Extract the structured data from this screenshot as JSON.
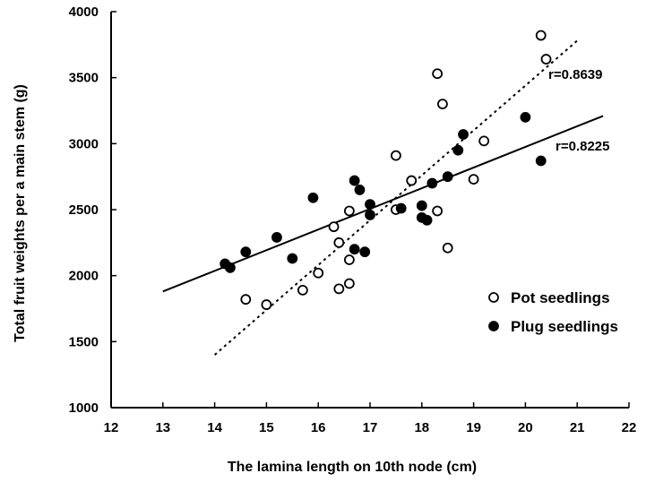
{
  "chart_data": {
    "type": "scatter",
    "title": "",
    "xlabel": "The lamina length on 10th node (cm)",
    "ylabel": "Total fruit weights per a main stem (g)",
    "xlim": [
      12,
      22
    ],
    "ylim": [
      1000,
      4000
    ],
    "x_ticks": [
      "12",
      "13",
      "14",
      "15",
      "16",
      "17",
      "18",
      "19",
      "20",
      "21",
      "22"
    ],
    "y_ticks": [
      "1000",
      "1500",
      "2000",
      "2500",
      "3000",
      "3500",
      "4000"
    ],
    "legend_position": "right",
    "grid": false,
    "series": [
      {
        "name": "Pot seedlings",
        "marker": "open-circle",
        "points": [
          [
            14.6,
            1820
          ],
          [
            15.0,
            1780
          ],
          [
            15.7,
            1890
          ],
          [
            16.0,
            2020
          ],
          [
            16.3,
            2370
          ],
          [
            16.4,
            2250
          ],
          [
            16.4,
            1900
          ],
          [
            16.6,
            2120
          ],
          [
            16.6,
            1940
          ],
          [
            16.6,
            2490
          ],
          [
            17.5,
            2910
          ],
          [
            17.5,
            2500
          ],
          [
            17.8,
            2720
          ],
          [
            18.3,
            2490
          ],
          [
            18.3,
            3530
          ],
          [
            18.4,
            3300
          ],
          [
            18.5,
            2210
          ],
          [
            19.0,
            2730
          ],
          [
            19.2,
            3020
          ],
          [
            20.3,
            3820
          ],
          [
            20.4,
            3640
          ]
        ],
        "fit_line": {
          "style": "dashed",
          "x_range": [
            14.0,
            21.0
          ],
          "y_range": [
            1400,
            3780
          ],
          "label": "r=0.8639"
        }
      },
      {
        "name": "Plug seedlings",
        "marker": "filled-circle",
        "points": [
          [
            14.2,
            2090
          ],
          [
            14.3,
            2060
          ],
          [
            14.6,
            2180
          ],
          [
            15.2,
            2290
          ],
          [
            15.5,
            2130
          ],
          [
            15.9,
            2590
          ],
          [
            16.7,
            2720
          ],
          [
            16.7,
            2200
          ],
          [
            16.8,
            2650
          ],
          [
            16.9,
            2180
          ],
          [
            17.0,
            2540
          ],
          [
            17.0,
            2460
          ],
          [
            17.6,
            2510
          ],
          [
            18.0,
            2530
          ],
          [
            18.0,
            2440
          ],
          [
            18.1,
            2420
          ],
          [
            18.2,
            2700
          ],
          [
            18.5,
            2750
          ],
          [
            18.7,
            2950
          ],
          [
            18.8,
            3070
          ],
          [
            20.0,
            3200
          ],
          [
            20.3,
            2870
          ]
        ],
        "fit_line": {
          "style": "solid",
          "x_range": [
            13.0,
            21.5
          ],
          "y_range": [
            1880,
            3210
          ],
          "label": "r=0.8225"
        }
      }
    ]
  }
}
